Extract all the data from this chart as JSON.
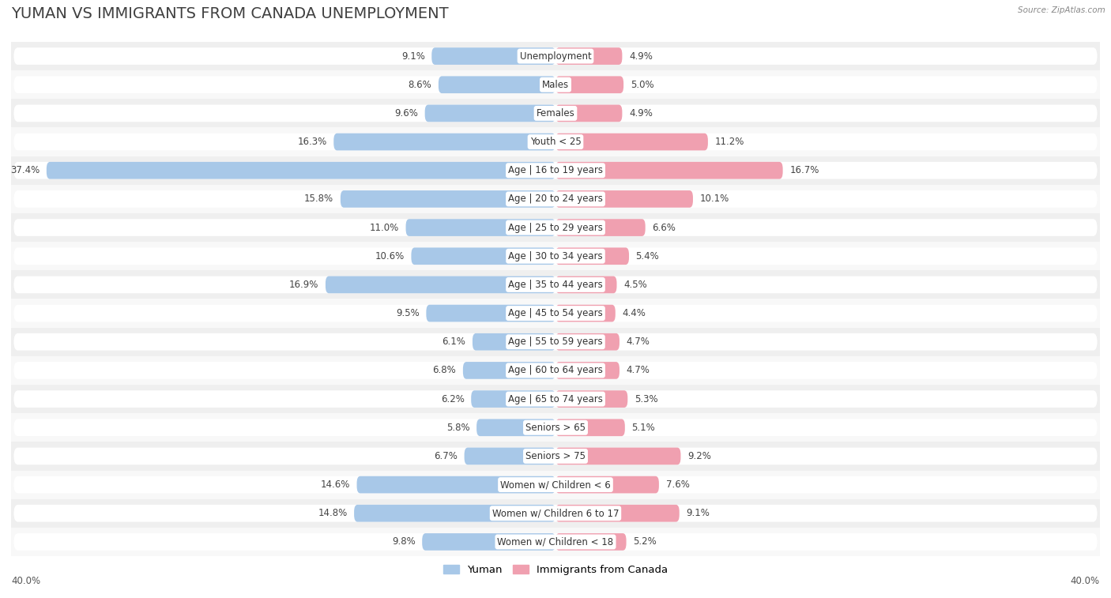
{
  "title": "YUMAN VS IMMIGRANTS FROM CANADA UNEMPLOYMENT",
  "source": "Source: ZipAtlas.com",
  "categories": [
    "Unemployment",
    "Males",
    "Females",
    "Youth < 25",
    "Age | 16 to 19 years",
    "Age | 20 to 24 years",
    "Age | 25 to 29 years",
    "Age | 30 to 34 years",
    "Age | 35 to 44 years",
    "Age | 45 to 54 years",
    "Age | 55 to 59 years",
    "Age | 60 to 64 years",
    "Age | 65 to 74 years",
    "Seniors > 65",
    "Seniors > 75",
    "Women w/ Children < 6",
    "Women w/ Children 6 to 17",
    "Women w/ Children < 18"
  ],
  "yuman_values": [
    9.1,
    8.6,
    9.6,
    16.3,
    37.4,
    15.8,
    11.0,
    10.6,
    16.9,
    9.5,
    6.1,
    6.8,
    6.2,
    5.8,
    6.7,
    14.6,
    14.8,
    9.8
  ],
  "canada_values": [
    4.9,
    5.0,
    4.9,
    11.2,
    16.7,
    10.1,
    6.6,
    5.4,
    4.5,
    4.4,
    4.7,
    4.7,
    5.3,
    5.1,
    9.2,
    7.6,
    9.1,
    5.2
  ],
  "yuman_color": "#a8c8e8",
  "canada_color": "#f0a0b0",
  "yuman_label": "Yuman",
  "canada_label": "Immigrants from Canada",
  "axis_limit": 40.0,
  "row_bg_color": "#e8e8e8",
  "bar_row_color": "#f5f5f5",
  "overall_bg": "#ffffff",
  "title_fontsize": 14,
  "label_fontsize": 8.5,
  "value_fontsize": 8.5
}
